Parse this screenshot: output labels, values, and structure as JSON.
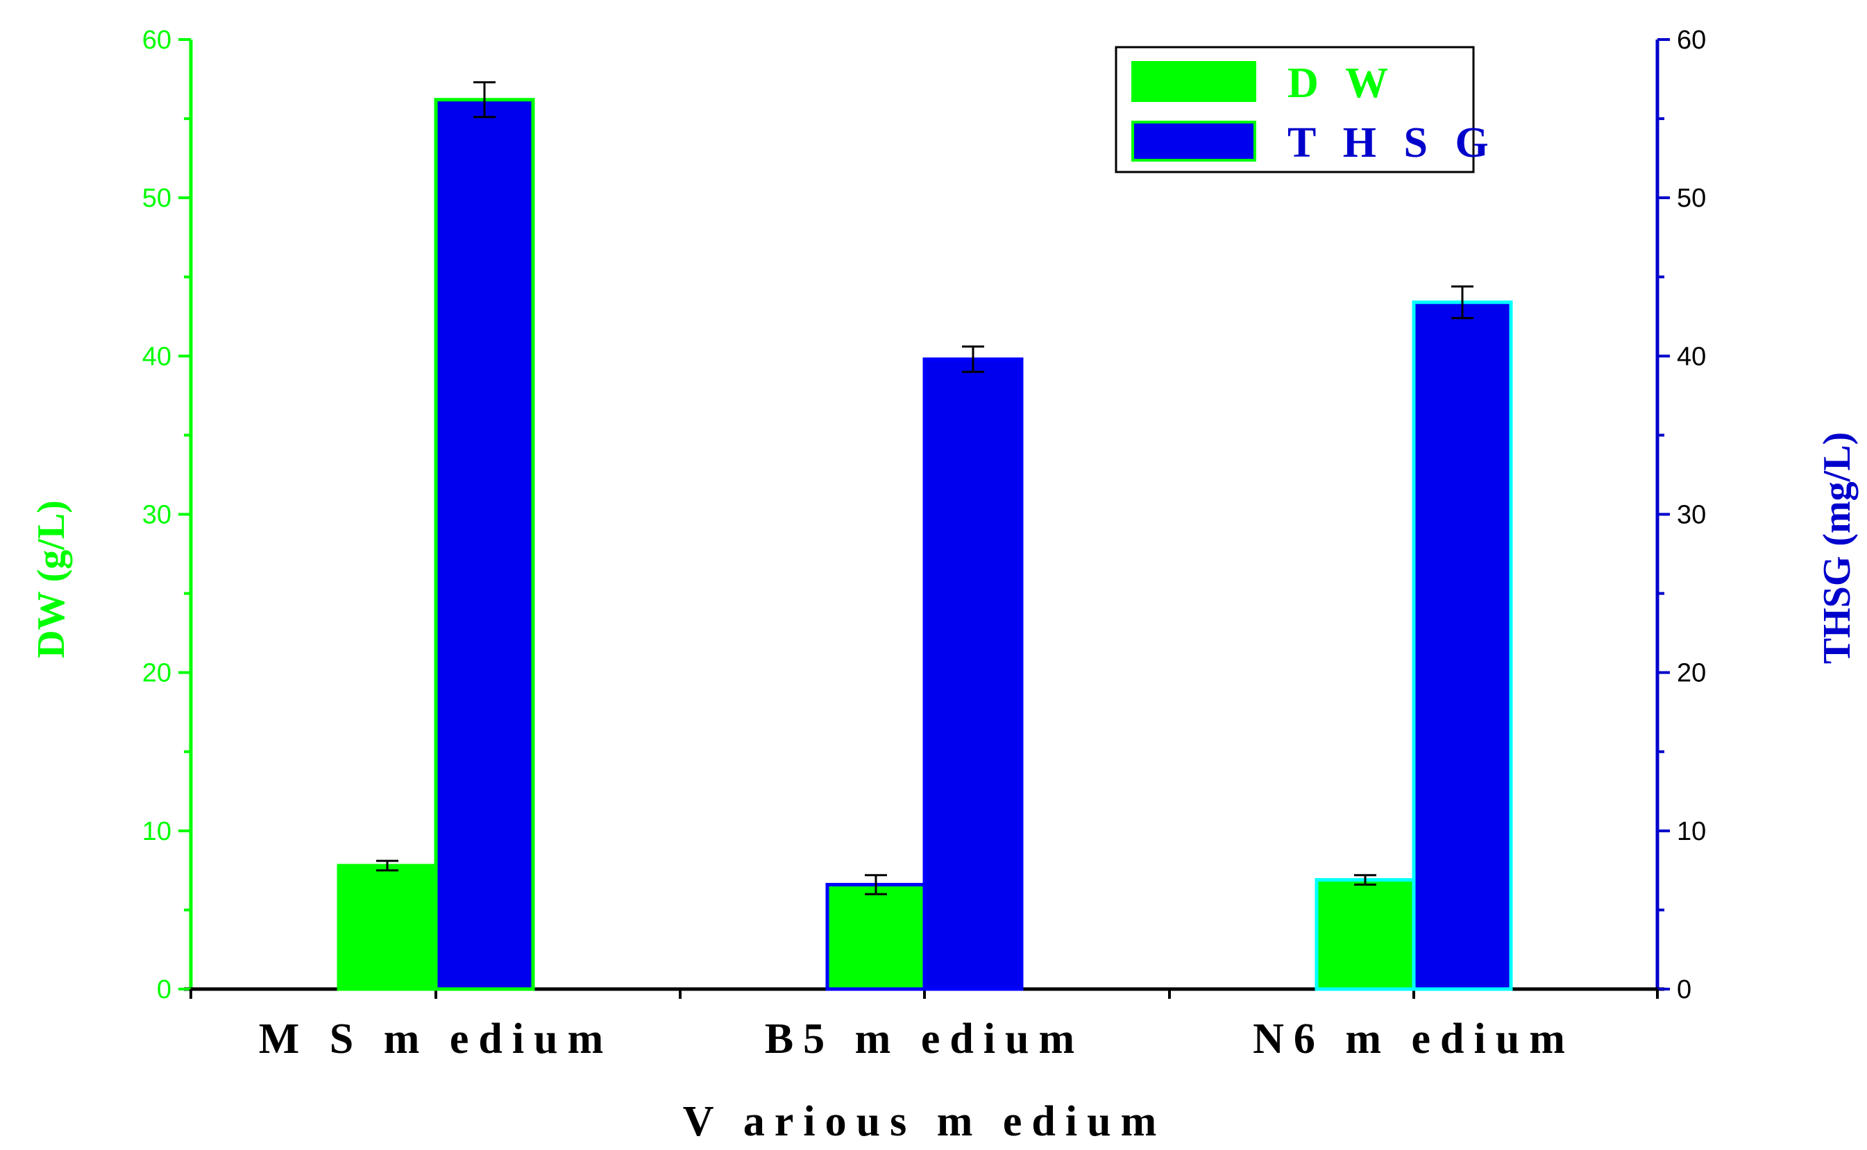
{
  "chart_data": {
    "type": "bar",
    "categories": [
      "M S  m edium",
      "B5  m edium",
      "N6  m edium"
    ],
    "series": [
      {
        "name": "D W",
        "axis": "left",
        "values": [
          7.8,
          6.6,
          6.9
        ],
        "errors": [
          0.3,
          0.6,
          0.3
        ],
        "fill": "#00ff00",
        "edge_colors": [
          "#00ff00",
          "#0000ff",
          "#00ffff"
        ]
      },
      {
        "name": "T H S G",
        "axis": "right",
        "values": [
          56.2,
          39.8,
          43.4
        ],
        "errors": [
          1.1,
          0.8,
          1.0
        ],
        "fill": "#0000ee",
        "edge_colors": [
          "#00ff00",
          "#0000ff",
          "#00ffff"
        ]
      }
    ],
    "xlabel": "V arious  m edium",
    "ylabel_left": "DW (g/L)",
    "ylabel_right": "THSG (mg/L)",
    "ylim_left": [
      0,
      60
    ],
    "ylim_right": [
      0,
      60
    ],
    "yticks": [
      "0",
      "10",
      "20",
      "30",
      "40",
      "50",
      "60"
    ],
    "left_axis_color": "#00ff00",
    "right_axis_color": "#0000cc",
    "legend_position": "top-right",
    "grid": false
  }
}
